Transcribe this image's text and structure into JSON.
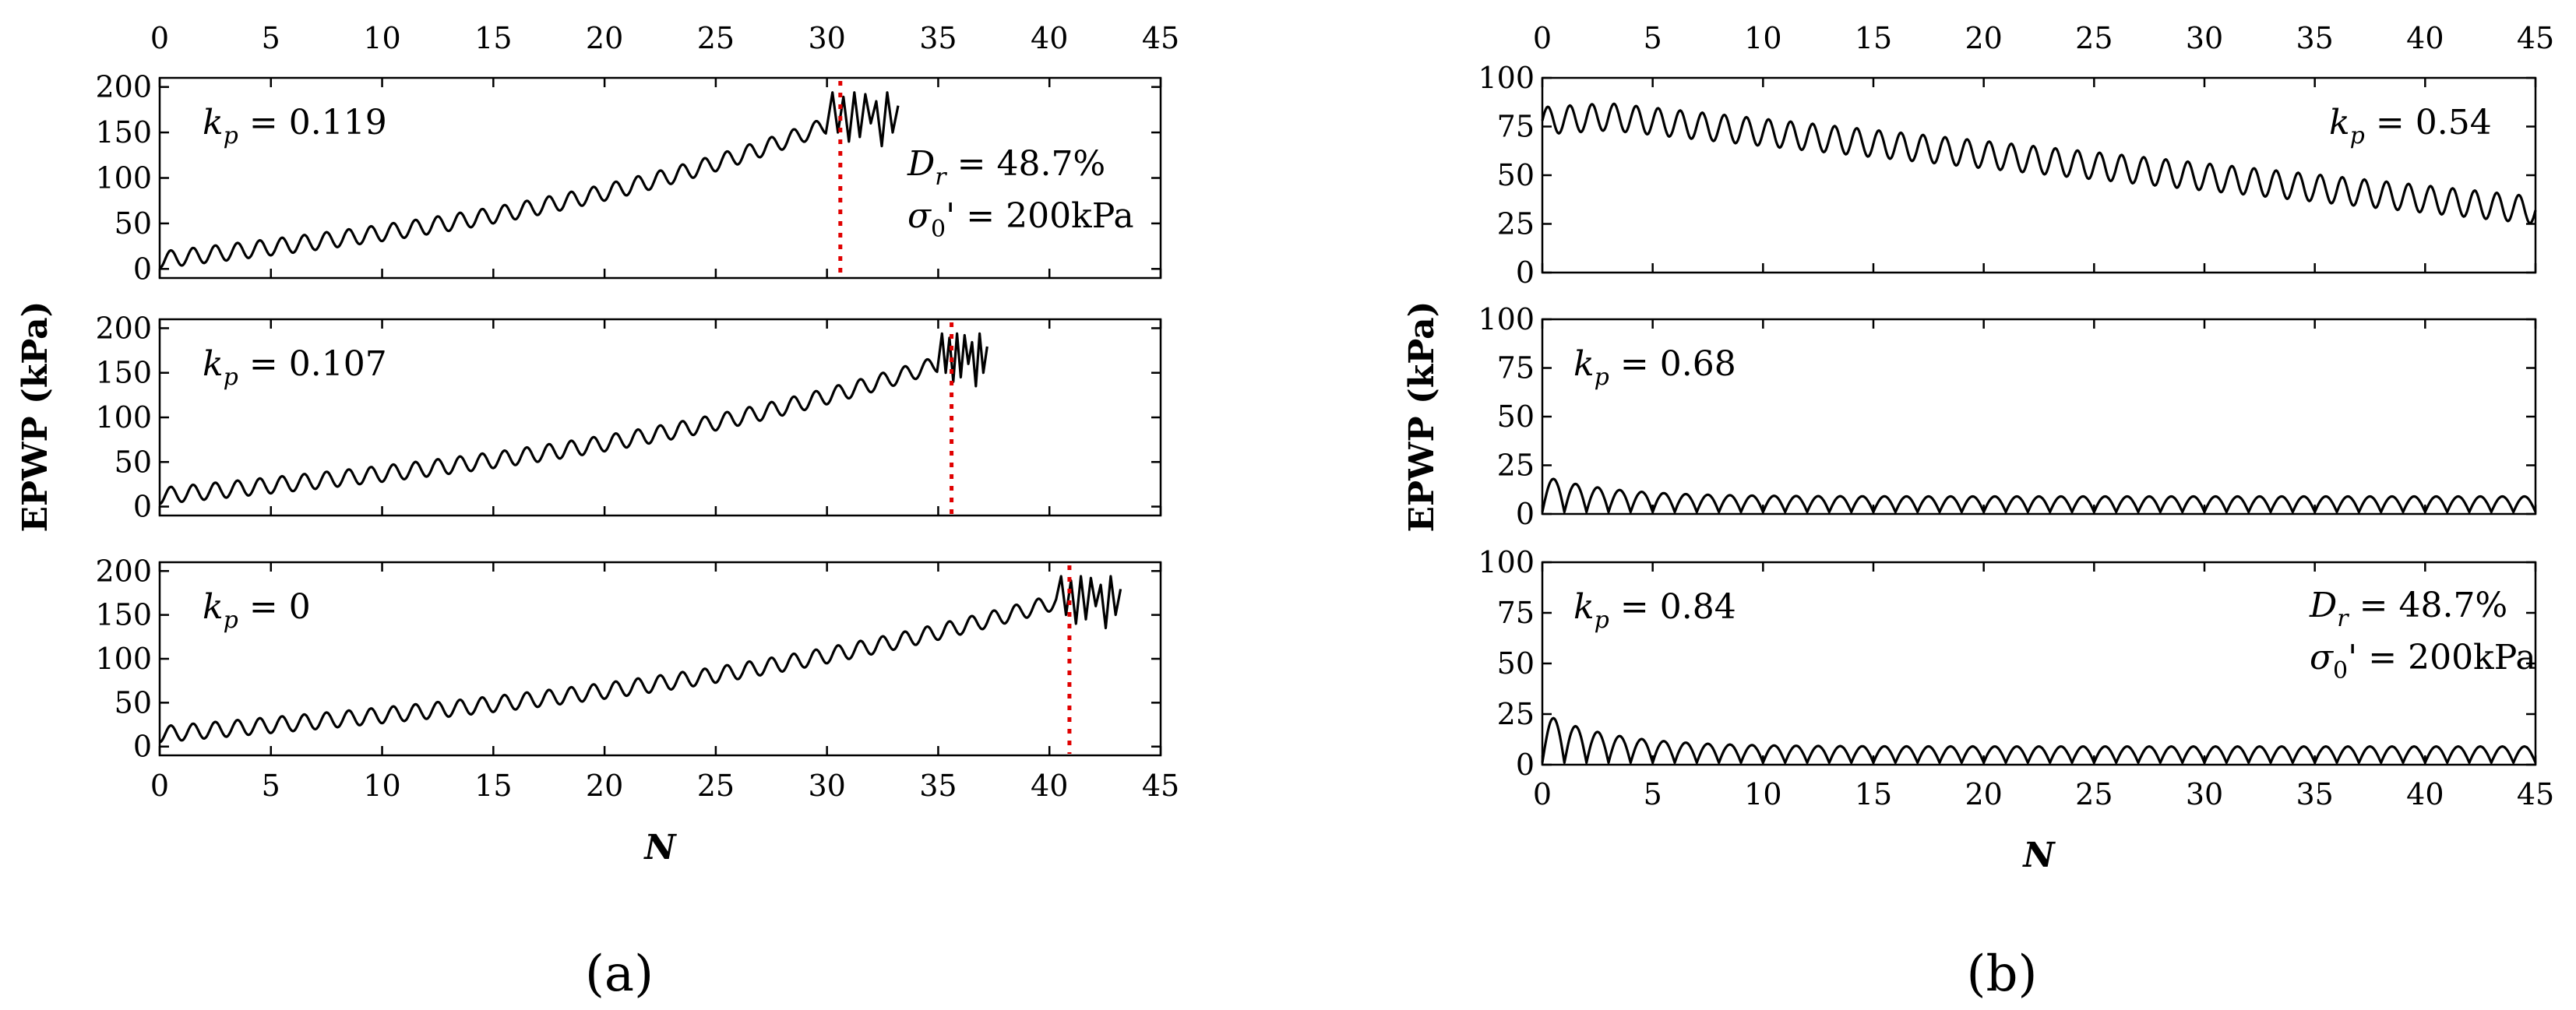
{
  "panel_labels": [
    "(a)",
    "(b)"
  ],
  "chart_data": [
    {
      "type": "line",
      "panel": "(a)",
      "xlabel": "N",
      "ylabel": "EPWP (kPa)",
      "xlim": [
        0,
        45
      ],
      "xticks": [
        0,
        5,
        10,
        15,
        20,
        25,
        30,
        35,
        40,
        45
      ],
      "subplots": [
        {
          "kp_label": "k",
          "kp_sub": "p",
          "kp_value": " = 0.119",
          "ylim": [
            -10,
            210
          ],
          "yticks": [
            0,
            50,
            100,
            150,
            200
          ],
          "series": {
            "name": "EPWP",
            "cycle_period": 1,
            "start_mean": 10,
            "mid_mean": 95,
            "end_mean": 158,
            "amplitude": 9,
            "end_cycle": 30,
            "failure_end": 33.2
          },
          "failure_N": 30.6,
          "annotations": {
            "dr_symbol": "D",
            "dr_sub": "r",
            "dr_value": " = 48.7%",
            "sigma_symbol": "σ",
            "sigma_sub": "0",
            "sigma_value": "' = 200kPa"
          }
        },
        {
          "kp_label": "k",
          "kp_sub": "p",
          "kp_value": " = 0.107",
          "ylim": [
            -10,
            210
          ],
          "yticks": [
            0,
            50,
            100,
            150,
            200
          ],
          "series": {
            "name": "EPWP",
            "cycle_period": 1,
            "start_mean": 12,
            "mid_mean": 90,
            "end_mean": 160,
            "amplitude": 9,
            "end_cycle": 35,
            "failure_end": 37.2
          },
          "failure_N": 35.6
        },
        {
          "kp_label": "k",
          "kp_sub": "p",
          "kp_value": " = 0",
          "ylim": [
            -10,
            210
          ],
          "yticks": [
            0,
            50,
            100,
            150,
            200
          ],
          "series": {
            "name": "EPWP",
            "cycle_period": 1,
            "start_mean": 14,
            "mid_mean": 95,
            "end_mean": 165,
            "amplitude": 9,
            "end_cycle": 40.3,
            "failure_end": 43.2
          },
          "failure_N": 40.9
        }
      ]
    },
    {
      "type": "line",
      "panel": "(b)",
      "xlabel": "N",
      "ylabel": "EPWP (kPa)",
      "xlim": [
        0,
        45
      ],
      "xticks": [
        0,
        5,
        10,
        15,
        20,
        25,
        30,
        35,
        40,
        45
      ],
      "subplots": [
        {
          "kp_label": "k",
          "kp_sub": "p",
          "kp_value": " = 0.54",
          "ylim": [
            0,
            100
          ],
          "yticks": [
            0,
            25,
            50,
            75,
            100
          ],
          "series": {
            "name": "EPWP",
            "cycle_period": 1,
            "start_mean": 78,
            "peak_mean": 80,
            "end_mean": 32,
            "amplitude": 7,
            "end_N": 45
          }
        },
        {
          "kp_label": "k",
          "kp_sub": "p",
          "kp_value": " = 0.68",
          "ylim": [
            0,
            100
          ],
          "yticks": [
            0,
            25,
            50,
            75,
            100
          ],
          "series": {
            "name": "EPWP",
            "cycle_period": 1,
            "initial_peak": 18,
            "steady_peak": 9,
            "trough": 1,
            "end_N": 45
          }
        },
        {
          "kp_label": "k",
          "kp_sub": "p",
          "kp_value": " = 0.84",
          "ylim": [
            0,
            100
          ],
          "yticks": [
            0,
            25,
            50,
            75,
            100
          ],
          "series": {
            "name": "EPWP",
            "cycle_period": 1,
            "initial_peak": 23,
            "steady_peak": 9,
            "trough": 1,
            "end_N": 45
          },
          "annotations": {
            "dr_symbol": "D",
            "dr_sub": "r",
            "dr_value": " = 48.7%",
            "sigma_symbol": "σ",
            "sigma_sub": "0",
            "sigma_value": "' = 200kPa"
          }
        }
      ]
    }
  ]
}
